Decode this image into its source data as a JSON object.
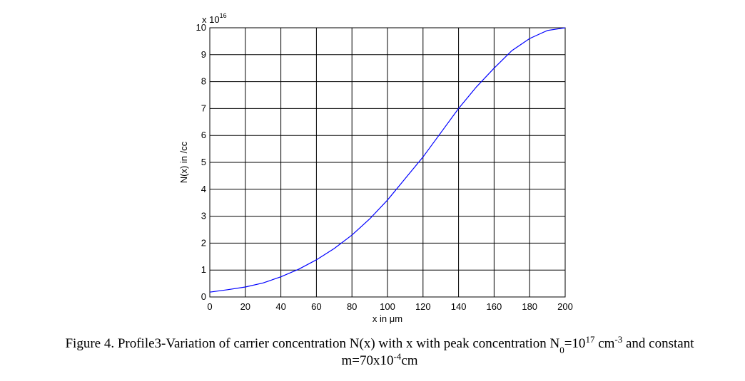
{
  "chart_data": {
    "type": "line",
    "x_label": "x in μm",
    "y_label": "N(x) in /cc",
    "y_multiplier": {
      "base": "x 10",
      "exponent": "16"
    },
    "x": [
      0,
      10,
      20,
      30,
      40,
      50,
      60,
      70,
      80,
      90,
      100,
      110,
      120,
      130,
      140,
      150,
      160,
      170,
      180,
      190,
      200
    ],
    "series": [
      {
        "color": "#0000ff",
        "values": [
          0.18,
          0.27,
          0.37,
          0.52,
          0.75,
          1.03,
          1.38,
          1.8,
          2.3,
          2.9,
          3.6,
          4.4,
          5.2,
          6.1,
          7.0,
          7.8,
          8.5,
          9.15,
          9.6,
          9.9,
          10.0
        ]
      }
    ],
    "xlim": [
      0,
      200
    ],
    "xticks": [
      0,
      20,
      40,
      60,
      80,
      100,
      120,
      140,
      160,
      180,
      200
    ],
    "ylim": [
      0,
      10
    ],
    "yticks": [
      0,
      1,
      2,
      3,
      4,
      5,
      6,
      7,
      8,
      9,
      10
    ],
    "grid": true
  },
  "caption": {
    "line1": [
      "Figure 4. Profile3-Variation of carrier concentration N(x) with x with peak concentration N",
      "0",
      "=10",
      "17",
      " cm",
      "-3",
      " and constant"
    ],
    "line2": [
      "m=70x10",
      "-4",
      "cm"
    ]
  }
}
